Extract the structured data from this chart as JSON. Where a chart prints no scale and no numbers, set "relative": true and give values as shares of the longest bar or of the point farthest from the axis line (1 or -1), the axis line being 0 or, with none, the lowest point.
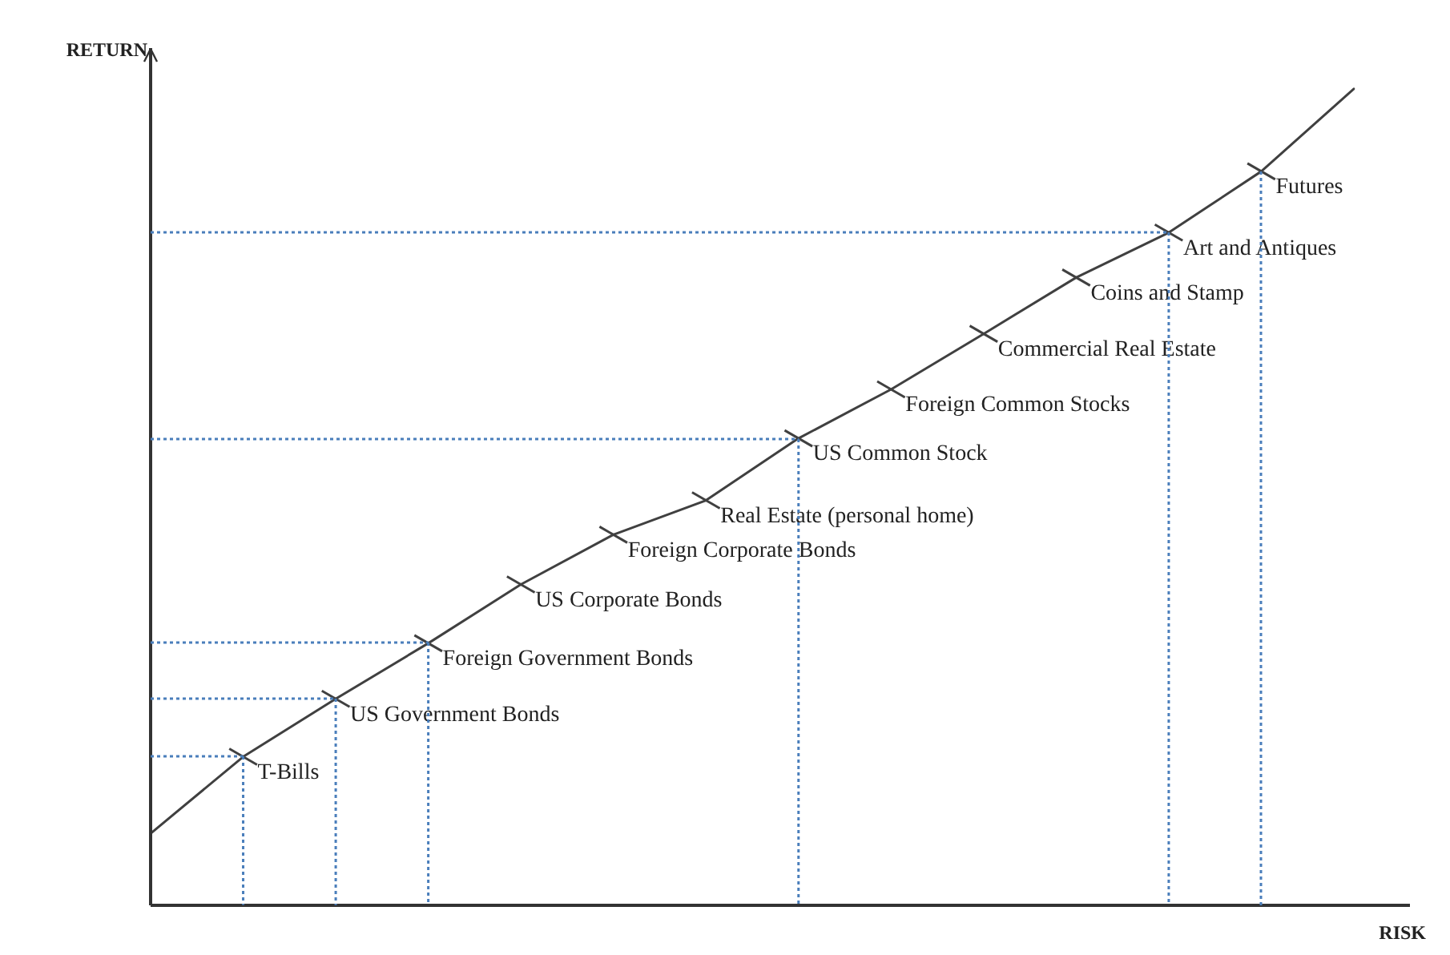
{
  "chart_data": {
    "type": "line",
    "relative": true,
    "xlabel": "RISK",
    "ylabel": "RETURN",
    "legend": false,
    "marker": "cross",
    "categories": [
      null,
      null,
      null,
      null,
      null,
      null,
      null,
      null,
      null,
      null,
      null,
      null,
      null,
      null
    ],
    "series": [
      {
        "color": "#404040",
        "line_style": "solid",
        "values": [
          0.088,
          0.182,
          0.253,
          0.321,
          0.393,
          0.454,
          0.496,
          0.572,
          0.632,
          0.7,
          0.769,
          0.824,
          0.899,
          1
        ]
      }
    ],
    "annotations": [
      "T-Bills",
      "US Government Bonds",
      "Foreign Government Bonds",
      "US Corporate Bonds",
      "Foreign Corporate Bonds",
      "Real Estate (personal home)",
      "US Common Stock",
      "Foreign Common Stocks",
      "Commercial Real Estate",
      "Coins and Stamp",
      "Art and Antiques",
      "Futures"
    ]
  }
}
